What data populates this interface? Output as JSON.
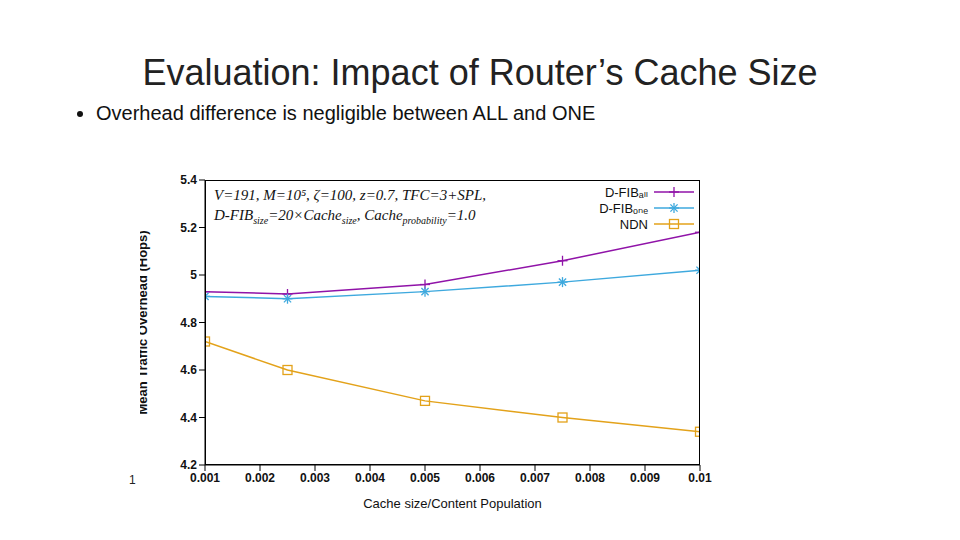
{
  "slide": {
    "title": "Evaluation: Impact of Router’s Cache Size",
    "bullet": "Overhead difference is negligible between ALL and ONE",
    "page_label": "1"
  },
  "chart_data": {
    "type": "line",
    "annotation": [
      "V=191, M=10⁵, ζ=100, z=0.7, TFC=3+SPL,",
      [
        "D-FIB",
        "size",
        "=20×Cache",
        "size",
        ", Cache",
        "probability",
        "=1.0"
      ]
    ],
    "x_label": "Cache size/Content Population",
    "y_label": "Mean Traffic Overhead (Hops)",
    "x": [
      0.001,
      0.0025,
      0.005,
      0.0075,
      0.01
    ],
    "series": [
      {
        "name": "D-FIBₐₗₗ",
        "color": "#9013a8",
        "marker": "plus",
        "values": [
          4.93,
          4.92,
          4.96,
          5.06,
          5.18
        ]
      },
      {
        "name": "D-FIBₒₙₑ",
        "color": "#3ea9de",
        "marker": "asterisk",
        "values": [
          4.91,
          4.9,
          4.93,
          4.97,
          5.02
        ]
      },
      {
        "name": "NDN",
        "color": "#e3a21a",
        "marker": "square",
        "values": [
          4.72,
          4.6,
          4.47,
          4.4,
          4.34
        ]
      }
    ],
    "xlim": [
      0.001,
      0.01
    ],
    "xticks": [
      0.001,
      0.002,
      0.003,
      0.004,
      0.005,
      0.006,
      0.007,
      0.008,
      0.009,
      0.01
    ],
    "ylim": [
      4.2,
      5.4
    ],
    "yticks": [
      4.2,
      4.4,
      4.6,
      4.8,
      5,
      5.2,
      5.4
    ],
    "grid": false,
    "legend": "top-right"
  }
}
